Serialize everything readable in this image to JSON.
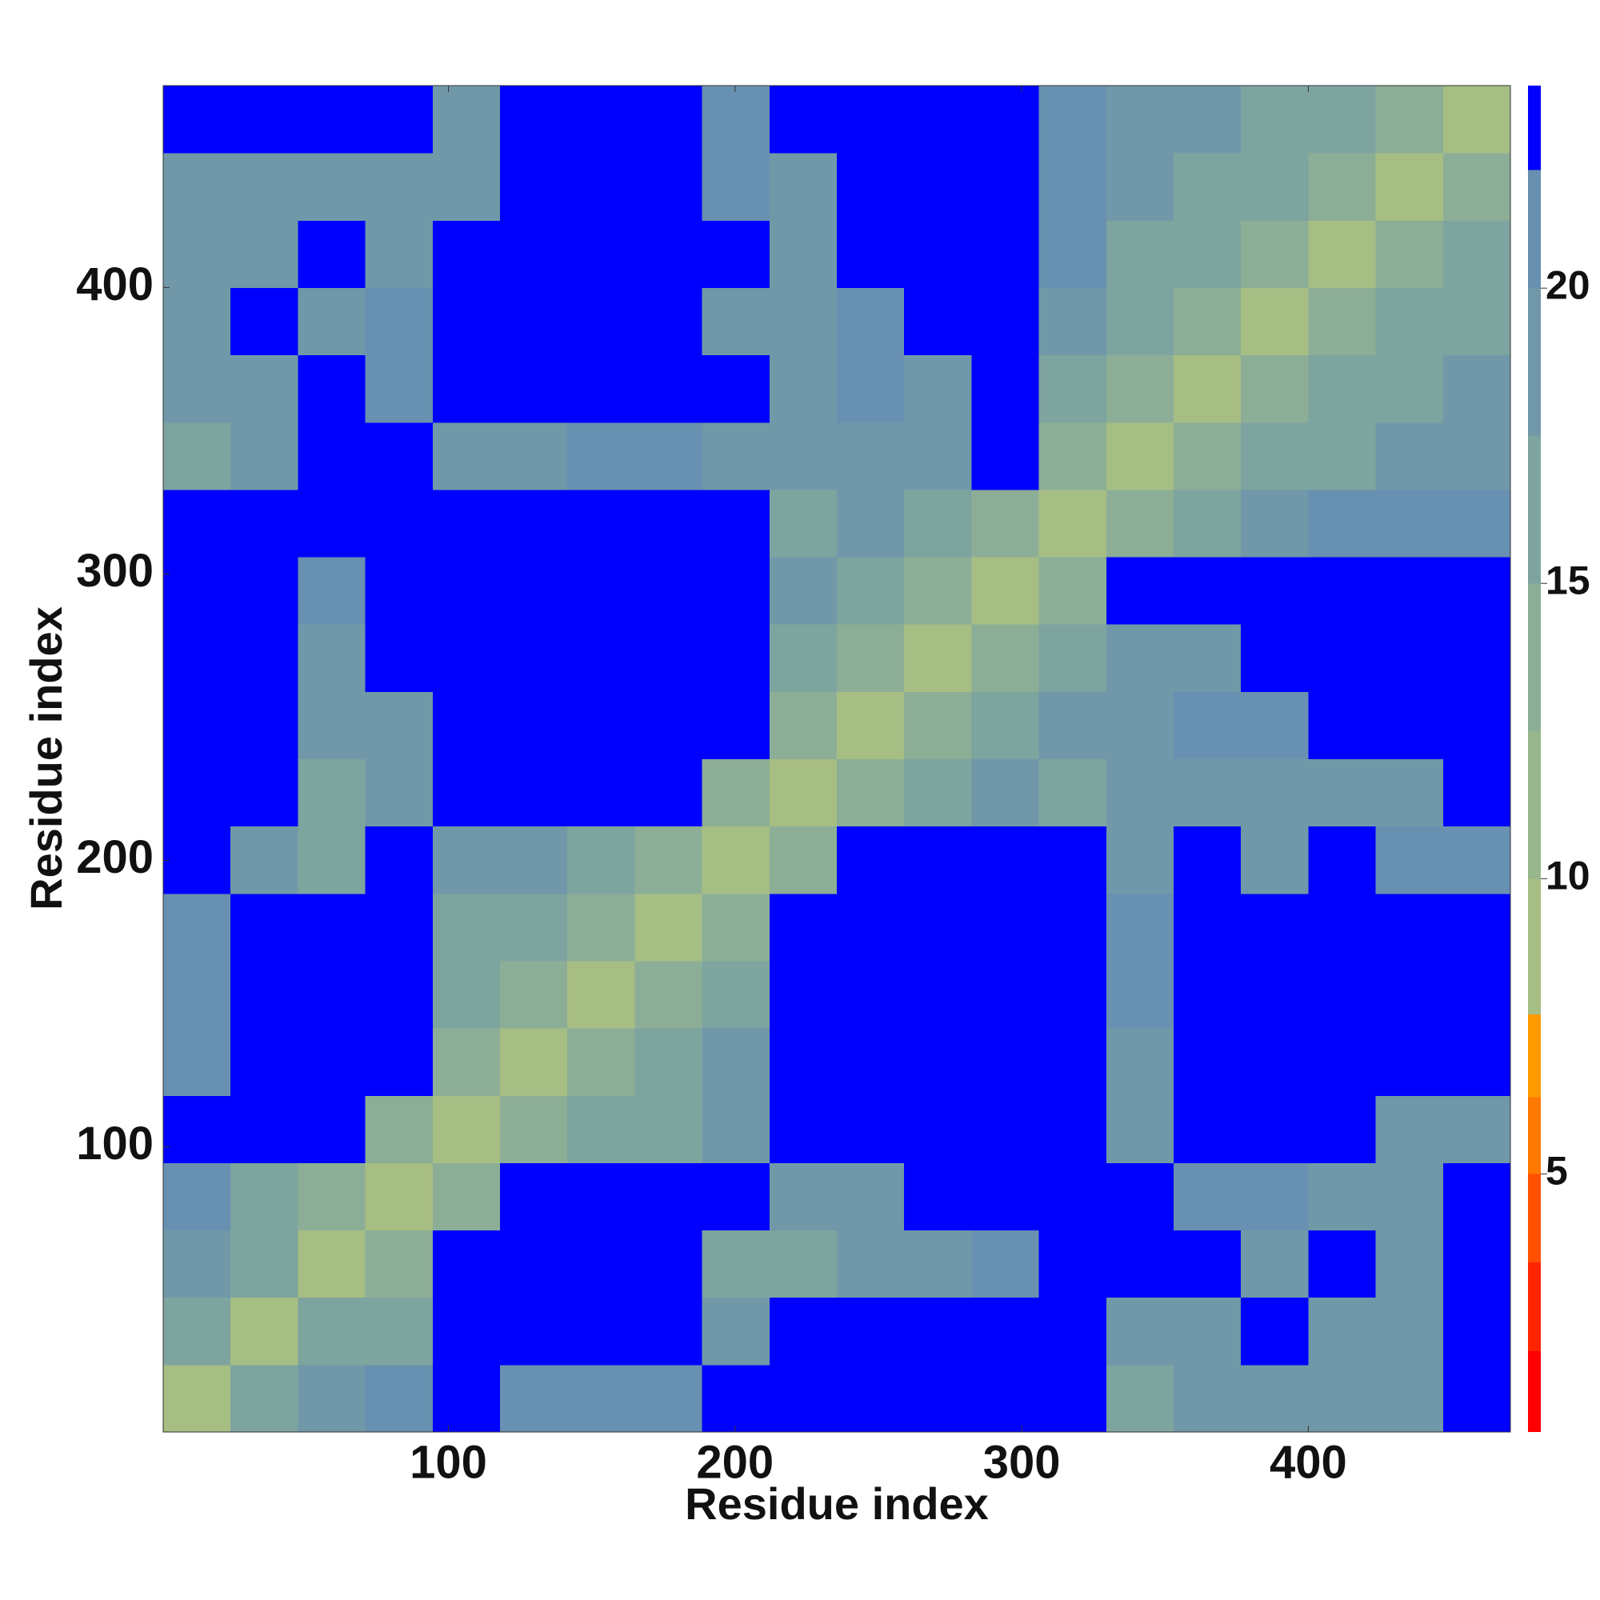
{
  "chart_data": {
    "type": "heatmap",
    "x_label": "Residue index",
    "y_label": "Residue index",
    "xlim": [
      0.5,
      470.5
    ],
    "ylim": [
      0.5,
      470.5
    ],
    "xticks": [
      100,
      200,
      300,
      400
    ],
    "yticks": [
      100,
      200,
      300,
      400
    ],
    "xbins": [
      0.5,
      24,
      47.5,
      71,
      94.5,
      118,
      141.5,
      165,
      188.5,
      212,
      235.5,
      259,
      282.5,
      306,
      329.5,
      353,
      376.5,
      400,
      423.5,
      447,
      470.5
    ],
    "ybins": [
      0.5,
      24,
      47.5,
      71,
      94.5,
      118,
      141.5,
      165,
      188.5,
      212,
      235.5,
      259,
      282.5,
      306,
      329.5,
      353,
      376.5,
      400,
      423.5,
      447,
      470.5
    ],
    "z": [
      [
        8,
        15,
        18,
        20,
        23,
        20,
        20,
        21,
        23,
        23,
        23,
        23,
        23,
        23,
        17,
        18,
        18,
        18,
        19,
        23
      ],
      [
        15,
        8,
        15,
        17,
        23,
        23,
        23,
        23,
        18,
        23,
        23,
        23,
        23,
        23,
        18,
        19,
        23,
        18,
        18,
        23
      ],
      [
        18,
        15,
        8,
        14,
        23,
        23,
        23,
        23,
        17,
        17,
        19,
        19,
        20,
        23,
        23,
        23,
        19,
        23,
        18,
        23
      ],
      [
        20,
        17,
        14,
        8,
        14,
        23,
        23,
        23,
        23,
        18,
        19,
        23,
        23,
        23,
        23,
        20,
        20,
        18,
        18,
        23
      ],
      [
        23,
        23,
        23,
        14,
        8,
        14,
        17,
        17,
        19,
        23,
        23,
        23,
        23,
        23,
        19,
        23,
        23,
        23,
        18,
        19
      ],
      [
        20,
        23,
        23,
        23,
        14,
        8,
        14,
        16,
        18,
        23,
        23,
        23,
        23,
        23,
        19,
        23,
        23,
        23,
        23,
        23
      ],
      [
        20,
        23,
        23,
        23,
        17,
        14,
        8,
        14,
        17,
        23,
        23,
        23,
        23,
        23,
        20,
        23,
        23,
        23,
        23,
        23
      ],
      [
        21,
        23,
        23,
        23,
        17,
        16,
        14,
        8,
        14,
        23,
        23,
        23,
        23,
        23,
        20,
        23,
        23,
        23,
        23,
        23
      ],
      [
        23,
        18,
        17,
        23,
        19,
        18,
        17,
        14,
        8,
        14,
        23,
        23,
        23,
        23,
        18,
        23,
        19,
        23,
        20,
        20
      ],
      [
        23,
        23,
        17,
        18,
        23,
        23,
        23,
        23,
        14,
        8,
        14,
        17,
        19,
        17,
        18,
        18,
        18,
        19,
        19,
        23
      ],
      [
        23,
        23,
        19,
        19,
        23,
        23,
        23,
        23,
        23,
        14,
        8,
        14,
        16,
        18,
        18,
        20,
        20,
        23,
        23,
        23
      ],
      [
        23,
        23,
        19,
        23,
        23,
        23,
        23,
        23,
        23,
        17,
        14,
        8,
        14,
        16,
        19,
        19,
        23,
        23,
        23,
        23
      ],
      [
        23,
        23,
        20,
        23,
        23,
        23,
        23,
        23,
        23,
        19,
        16,
        14,
        8,
        14,
        23,
        23,
        23,
        23,
        23,
        23
      ],
      [
        23,
        23,
        23,
        23,
        23,
        23,
        23,
        23,
        23,
        17,
        18,
        16,
        14,
        8,
        14,
        17,
        18,
        20,
        21,
        21
      ],
      [
        17,
        18,
        23,
        23,
        19,
        19,
        20,
        20,
        18,
        18,
        18,
        19,
        23,
        14,
        8,
        14,
        16,
        17,
        18,
        19
      ],
      [
        18,
        19,
        23,
        20,
        23,
        23,
        23,
        23,
        23,
        18,
        20,
        19,
        23,
        17,
        14,
        8,
        14,
        16,
        17,
        18
      ],
      [
        18,
        23,
        19,
        20,
        23,
        23,
        23,
        23,
        19,
        18,
        20,
        23,
        23,
        18,
        16,
        14,
        8,
        14,
        16,
        17
      ],
      [
        18,
        18,
        23,
        18,
        23,
        23,
        23,
        23,
        23,
        19,
        23,
        23,
        23,
        20,
        17,
        16,
        14,
        8,
        14,
        16
      ],
      [
        19,
        18,
        18,
        18,
        18,
        23,
        23,
        23,
        20,
        19,
        23,
        23,
        23,
        21,
        18,
        17,
        16,
        14,
        8,
        14
      ],
      [
        23,
        23,
        23,
        23,
        19,
        23,
        23,
        23,
        20,
        23,
        23,
        23,
        23,
        21,
        19,
        18,
        17,
        16,
        14,
        8
      ]
    ],
    "color_levels": [
      0.63,
      2,
      3.5,
      5,
      6.3,
      7.7,
      10,
      12.5,
      15,
      17.5,
      20,
      22,
      23.43
    ],
    "level_colors": [
      "#ff0000",
      "#ff2400",
      "#ff5000",
      "#ff7800",
      "#ff9a00",
      "#a6bd84",
      "#98b68c",
      "#8cae96",
      "#7ea4a0",
      "#7098a8",
      "#6890b0",
      "#0000ff"
    ],
    "colorbar_ticks": [
      5,
      10,
      15,
      20
    ]
  }
}
